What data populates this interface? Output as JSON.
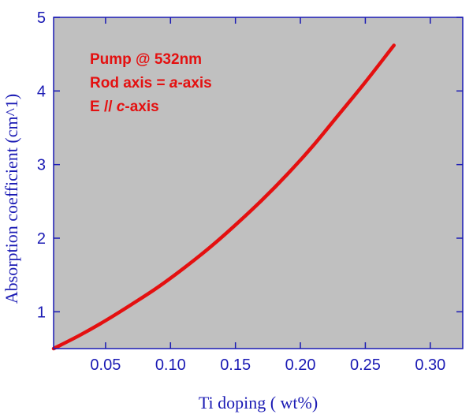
{
  "chart_data": {
    "type": "line",
    "title": "",
    "xlabel": "Ti doping ( wt%)",
    "ylabel": "Absorption coefficient (cm^1)",
    "xlim": [
      0.01,
      0.325
    ],
    "ylim": [
      0.5,
      5.0
    ],
    "xticks": [
      0.05,
      0.1,
      0.15,
      0.2,
      0.25,
      0.3
    ],
    "xtick_labels": [
      "0.05",
      "0.10",
      "0.15",
      "0.20",
      "0.25",
      "0.30"
    ],
    "yticks": [
      1,
      2,
      3,
      4,
      5
    ],
    "ytick_labels": [
      "1",
      "2",
      "3",
      "4",
      "5"
    ],
    "grid": false,
    "legend": "none",
    "series": [
      {
        "color": "#e41010",
        "x": [
          0.01,
          0.03,
          0.05,
          0.07,
          0.09,
          0.11,
          0.13,
          0.15,
          0.17,
          0.19,
          0.21,
          0.23,
          0.25,
          0.272
        ],
        "y": [
          0.5,
          0.68,
          0.88,
          1.1,
          1.33,
          1.59,
          1.87,
          2.18,
          2.51,
          2.87,
          3.26,
          3.69,
          4.12,
          4.62
        ]
      }
    ],
    "annotations": [
      {
        "parts": [
          {
            "text": "Pump @ 532nm",
            "italic": false
          }
        ]
      },
      {
        "parts": [
          {
            "text": "Rod axis = ",
            "italic": false
          },
          {
            "text": "a",
            "italic": true
          },
          {
            "text": "-axis",
            "italic": false
          }
        ]
      },
      {
        "parts": [
          {
            "text": "E // ",
            "italic": false
          },
          {
            "text": "c",
            "italic": true
          },
          {
            "text": "-axis",
            "italic": false
          }
        ]
      }
    ],
    "colors": {
      "plot_background": "#c0c0c0",
      "axis": "#1a1ab4",
      "line": "#e41010"
    }
  }
}
